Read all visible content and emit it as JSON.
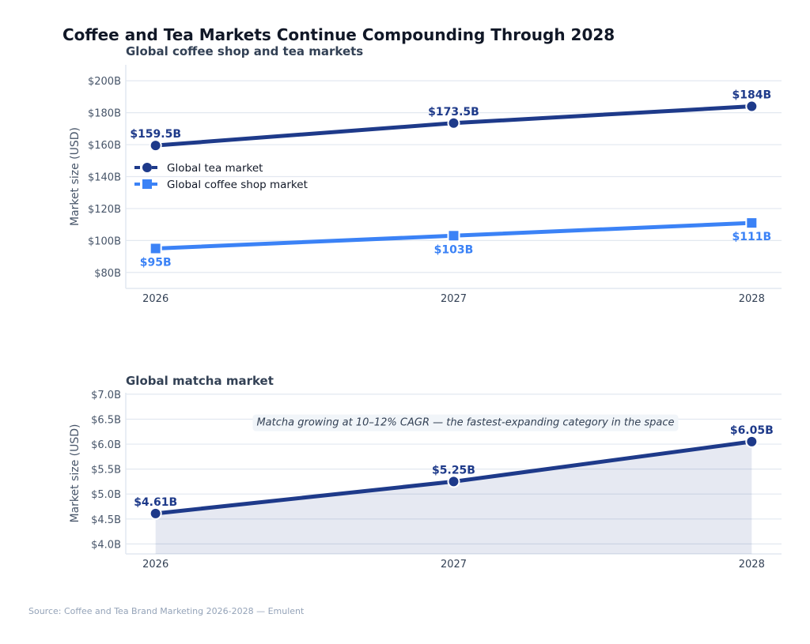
{
  "title": "Coffee and Tea Markets Continue Compounding Through 2028",
  "source": "Source: Coffee and Tea Brand Marketing 2026-2028 — Emulent",
  "chart_data": [
    {
      "type": "line",
      "title": "Global coffee shop and tea markets",
      "xlabel": "",
      "ylabel": "Market size (USD)",
      "x": [
        2026,
        2027,
        2028
      ],
      "x_tick_labels": [
        "2026",
        "2027",
        "2028"
      ],
      "ylim": [
        70,
        210
      ],
      "y_ticks": [
        80,
        100,
        120,
        140,
        160,
        180,
        200
      ],
      "y_tick_labels": [
        "$80B",
        "$100B",
        "$120B",
        "$140B",
        "$160B",
        "$180B",
        "$200B"
      ],
      "grid": true,
      "legend": "left",
      "series": [
        {
          "name": "Global tea market",
          "values": [
            159.5,
            173.5,
            184
          ],
          "labels": [
            "$159.5B",
            "$173.5B",
            "$184B"
          ],
          "color": "#1e3a8a",
          "marker": "circle"
        },
        {
          "name": "Global coffee shop market",
          "values": [
            95,
            103,
            111
          ],
          "labels": [
            "$95B",
            "$103B",
            "$111B"
          ],
          "color": "#3b82f6",
          "marker": "square"
        }
      ]
    },
    {
      "type": "area",
      "title": "Global matcha market",
      "xlabel": "",
      "ylabel": "Market size (USD)",
      "x": [
        2026,
        2027,
        2028
      ],
      "x_tick_labels": [
        "2026",
        "2027",
        "2028"
      ],
      "ylim": [
        3.8,
        7.03
      ],
      "y_ticks": [
        4.0,
        4.5,
        5.0,
        5.5,
        6.0,
        6.5,
        7.0
      ],
      "y_tick_labels": [
        "$4.0B",
        "$4.5B",
        "$5.0B",
        "$5.5B",
        "$6.0B",
        "$6.5B",
        "$7.0B"
      ],
      "grid": true,
      "series": [
        {
          "values": [
            4.61,
            5.25,
            6.05
          ],
          "labels": [
            "$4.61B",
            "$5.25B",
            "$6.05B"
          ],
          "color": "#1e3a8a",
          "marker": "circle"
        }
      ],
      "annotation": "Matcha growing at 10–12% CAGR — the fastest-expanding category in the space"
    }
  ]
}
